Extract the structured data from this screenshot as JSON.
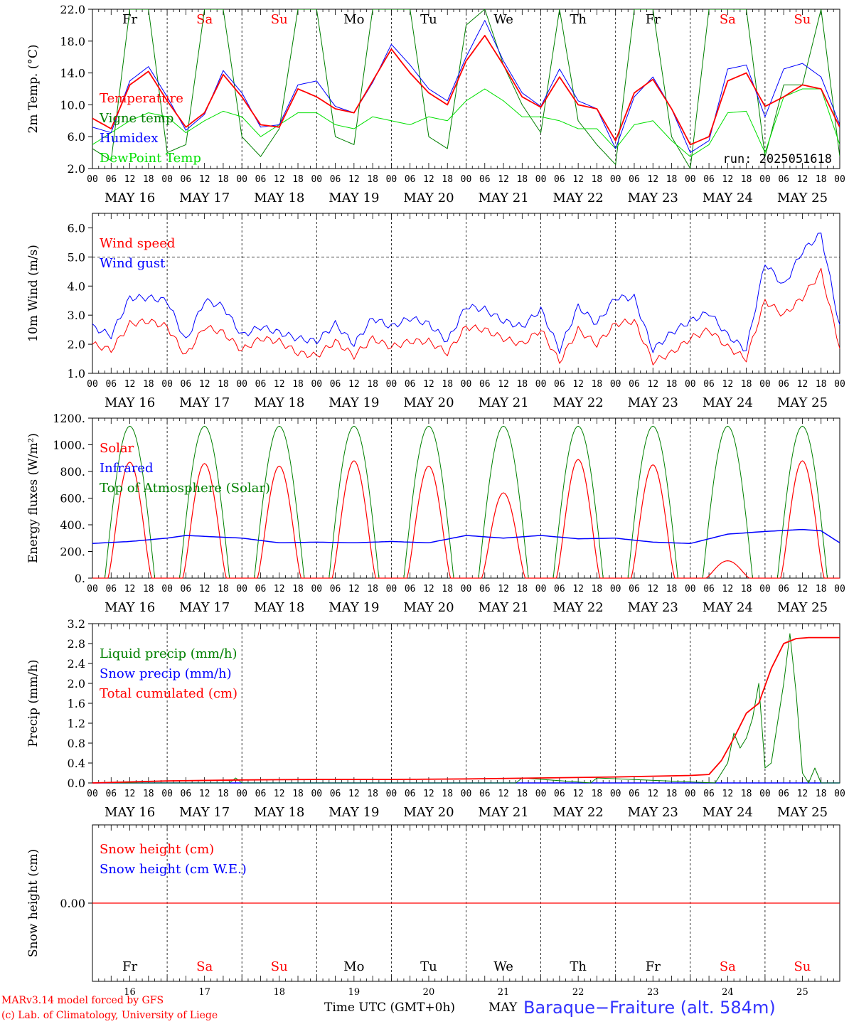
{
  "colors": {
    "red": "#ff0000",
    "green": "#008000",
    "blue": "#0000ff",
    "lightgreen": "#00e000",
    "black": "#000000",
    "grid": "#000000"
  },
  "footer": {
    "credit_line1": "MARv3.14 model forced by GFS",
    "credit_line2": "(c) Lab. of Climatology, University of Liege",
    "time_label": "Time UTC (GMT+0h)",
    "month_label": "MAY",
    "station": "Baraque−Fraiture (alt. 584m)"
  },
  "days": {
    "dates": [
      "MAY 16",
      "MAY 17",
      "MAY 18",
      "MAY 19",
      "MAY 20",
      "MAY 21",
      "MAY 22",
      "MAY 23",
      "MAY 24",
      "MAY 25"
    ],
    "weekdays": [
      "Fr",
      "Sa",
      "Su",
      "Mo",
      "Tu",
      "We",
      "Th",
      "Fr",
      "Sa",
      "Su"
    ],
    "weekday_colors": [
      "#000000",
      "#ff0000",
      "#ff0000",
      "#000000",
      "#000000",
      "#000000",
      "#000000",
      "#000000",
      "#ff0000",
      "#ff0000"
    ],
    "day_numbers": [
      "16",
      "17",
      "18",
      "19",
      "20",
      "21",
      "22",
      "23",
      "24",
      "25"
    ],
    "hour_ticks": [
      "00",
      "06",
      "12",
      "18"
    ],
    "end_tick": "00"
  },
  "chart_data": [
    {
      "type": "line",
      "ylabel": "2m Temp. (°C)",
      "ylim": [
        2,
        22
      ],
      "yticks": [
        "2.0",
        "6.0",
        "10.0",
        "14.0",
        "18.0",
        "22.0"
      ],
      "run_label": "run: 2025051618",
      "legend": [
        {
          "name": "Temperature",
          "color": "#ff0000"
        },
        {
          "name": "Vigne temp",
          "color": "#008000"
        },
        {
          "name": "Humidex",
          "color": "#0000ff"
        },
        {
          "name": "DewPoint Temp",
          "color": "#00e000"
        }
      ],
      "x_hours": [
        0,
        6,
        12,
        18,
        24,
        30,
        36,
        42,
        48,
        54,
        60,
        66,
        72,
        78,
        84,
        90,
        96,
        102,
        108,
        114,
        120,
        126,
        132,
        138,
        144,
        150,
        156,
        162,
        168,
        174,
        180,
        186,
        192,
        198,
        204,
        210,
        216,
        222,
        228,
        234,
        240
      ],
      "series": [
        {
          "name": "Temperature",
          "color": "#ff0000",
          "values": [
            8.3,
            7.0,
            12.5,
            14.2,
            10.5,
            7.2,
            9.0,
            13.8,
            11.0,
            7.5,
            7.2,
            12.0,
            11.0,
            9.5,
            9.0,
            13.0,
            17.0,
            14.0,
            11.5,
            10.0,
            15.5,
            18.7,
            15.0,
            11.0,
            9.7,
            13.5,
            10.0,
            9.5,
            5.5,
            11.5,
            13.2,
            9.5,
            5.0,
            6.0,
            13.0,
            14.0,
            9.8,
            11.0,
            12.5,
            12.0,
            7.2
          ]
        },
        {
          "name": "Vigne temp",
          "color": "#008000",
          "values": [
            4.5,
            3.0,
            22.0,
            22.0,
            4.0,
            5.0,
            22.0,
            22.0,
            6.0,
            3.5,
            7.0,
            22.0,
            22.0,
            6.0,
            5.0,
            22.0,
            22.0,
            22.0,
            6.0,
            4.5,
            20.0,
            22.0,
            15.0,
            10.0,
            6.5,
            22.0,
            8.0,
            5.0,
            2.5,
            22.0,
            22.0,
            6.0,
            2.0,
            22.0,
            22.0,
            22.0,
            3.5,
            12.5,
            12.5,
            22.0,
            3.5
          ]
        },
        {
          "name": "Humidex",
          "color": "#0000ff",
          "values": [
            7.2,
            6.5,
            13.0,
            14.8,
            11.0,
            6.8,
            8.8,
            14.3,
            11.5,
            7.2,
            7.5,
            12.5,
            13.0,
            9.8,
            9.0,
            12.8,
            17.6,
            15.0,
            12.0,
            10.5,
            16.0,
            20.6,
            15.5,
            11.5,
            9.8,
            14.5,
            10.5,
            9.5,
            4.5,
            11.0,
            13.5,
            9.5,
            4.0,
            5.5,
            14.5,
            15.0,
            8.5,
            14.5,
            15.2,
            13.5,
            7.5
          ]
        },
        {
          "name": "DewPoint Temp",
          "color": "#00e000",
          "values": [
            5.0,
            6.5,
            8.0,
            9.0,
            8.5,
            6.5,
            8.0,
            9.2,
            8.5,
            6.0,
            7.5,
            9.0,
            9.0,
            7.5,
            7.0,
            8.5,
            8.0,
            7.5,
            8.5,
            8.0,
            10.5,
            12.0,
            10.5,
            8.5,
            8.5,
            8.0,
            7.0,
            7.0,
            4.5,
            7.5,
            8.0,
            5.5,
            3.5,
            5.0,
            9.0,
            9.2,
            4.0,
            11.0,
            12.0,
            12.0,
            5.0
          ]
        }
      ]
    },
    {
      "type": "line",
      "ylabel": "10m Wind (m/s)",
      "ylim": [
        1,
        6.5
      ],
      "yticks": [
        "1.0",
        "2.0",
        "3.0",
        "4.0",
        "5.0",
        "6.0"
      ],
      "dashed_y": 5.0,
      "legend": [
        {
          "name": "Wind speed",
          "color": "#ff0000"
        },
        {
          "name": "Wind gust",
          "color": "#0000ff"
        }
      ],
      "x_hours": [
        0,
        6,
        12,
        18,
        24,
        30,
        36,
        42,
        48,
        54,
        60,
        66,
        72,
        78,
        84,
        90,
        96,
        102,
        108,
        114,
        120,
        126,
        132,
        138,
        144,
        150,
        156,
        162,
        168,
        174,
        180,
        186,
        192,
        198,
        204,
        210,
        216,
        222,
        228,
        234,
        240
      ],
      "series": [
        {
          "name": "Wind speed",
          "color": "#ff0000",
          "values": [
            2.0,
            1.8,
            2.7,
            2.8,
            2.6,
            1.6,
            2.6,
            2.4,
            1.8,
            2.2,
            2.1,
            1.7,
            1.6,
            2.1,
            1.6,
            2.2,
            1.9,
            2.1,
            2.1,
            1.7,
            2.6,
            2.5,
            2.2,
            2.0,
            2.5,
            1.4,
            2.5,
            2.0,
            2.7,
            2.8,
            1.4,
            1.7,
            2.2,
            2.5,
            1.9,
            1.5,
            3.5,
            3.0,
            3.6,
            4.5,
            1.9
          ]
        },
        {
          "name": "Wind gust",
          "color": "#0000ff",
          "values": [
            2.6,
            2.3,
            3.6,
            3.6,
            3.5,
            2.1,
            3.5,
            3.3,
            2.3,
            2.6,
            2.4,
            2.2,
            2.1,
            2.7,
            2.0,
            2.9,
            2.6,
            2.9,
            2.7,
            2.1,
            3.3,
            3.2,
            2.8,
            2.6,
            3.2,
            1.8,
            3.3,
            2.7,
            3.6,
            3.6,
            1.8,
            2.4,
            2.8,
            3.1,
            2.3,
            1.8,
            4.8,
            4.0,
            5.2,
            5.8,
            2.6
          ]
        }
      ]
    },
    {
      "type": "line",
      "ylabel": "Energy fluxes (W/m²)",
      "ylim": [
        0,
        1200
      ],
      "yticks": [
        "0.",
        "200.",
        "400.",
        "600.",
        "800.",
        "1000.",
        "1200."
      ],
      "legend": [
        {
          "name": "Solar",
          "color": "#ff0000"
        },
        {
          "name": "Infrared",
          "color": "#0000ff"
        },
        {
          "name": "Top of Atmosphere (Solar)",
          "color": "#008000"
        }
      ],
      "toa_peak": 1140,
      "solar_peaks": [
        870,
        860,
        840,
        880,
        840,
        640,
        890,
        850,
        130,
        880
      ],
      "infrared": {
        "x_hours": [
          0,
          12,
          24,
          30,
          48,
          60,
          72,
          84,
          96,
          108,
          120,
          132,
          144,
          156,
          168,
          180,
          192,
          204,
          216,
          228,
          234,
          240
        ],
        "values": [
          260,
          275,
          300,
          320,
          300,
          265,
          270,
          265,
          275,
          265,
          320,
          300,
          320,
          295,
          300,
          270,
          260,
          330,
          350,
          365,
          355,
          265
        ]
      }
    },
    {
      "type": "line",
      "ylabel": "Precip (mm/h)",
      "ylim": [
        0,
        3.2
      ],
      "yticks": [
        "0.0",
        "0.4",
        "0.8",
        "1.2",
        "1.6",
        "2.0",
        "2.4",
        "2.8",
        "3.2"
      ],
      "legend": [
        {
          "name": "Liquid precip (mm/h)",
          "color": "#008000"
        },
        {
          "name": "Snow precip (mm/h)",
          "color": "#0000ff"
        },
        {
          "name": "Total cumulated (cm)",
          "color": "#ff0000"
        }
      ],
      "series": [
        {
          "name": "Liquid precip (mm/h)",
          "color": "#008000",
          "x_hours": [
            0,
            44,
            46,
            48,
            120,
            136,
            138,
            160,
            162,
            200,
            204,
            206,
            208,
            210,
            212,
            214,
            216,
            218,
            220,
            222,
            224,
            226,
            228,
            230,
            232,
            234,
            236,
            238,
            240
          ],
          "values": [
            0,
            0,
            0.1,
            0,
            0,
            0,
            0.1,
            0,
            0.1,
            0,
            0.4,
            1.0,
            0.7,
            0.9,
            1.3,
            2.0,
            0.3,
            0.4,
            1.2,
            2.0,
            3.0,
            1.8,
            0.2,
            0,
            0.3,
            0,
            0,
            0,
            0
          ]
        },
        {
          "name": "Total cumulated (cm)",
          "color": "#ff0000",
          "x_hours": [
            0,
            24,
            48,
            72,
            96,
            120,
            144,
            168,
            192,
            198,
            202,
            206,
            210,
            214,
            218,
            222,
            226,
            230,
            240
          ],
          "values": [
            0,
            0.04,
            0.06,
            0.07,
            0.07,
            0.08,
            0.1,
            0.12,
            0.15,
            0.17,
            0.45,
            0.9,
            1.4,
            1.6,
            2.3,
            2.8,
            2.9,
            2.92,
            2.92
          ]
        }
      ]
    },
    {
      "type": "line",
      "ylabel": "Snow height (cm)",
      "ylim": [
        -1,
        1
      ],
      "yticks": [
        "0.00"
      ],
      "legend": [
        {
          "name": "Snow height (cm)",
          "color": "#ff0000"
        },
        {
          "name": "Snow height (cm W.E.)",
          "color": "#0000ff"
        }
      ],
      "series": [
        {
          "name": "Snow height (cm)",
          "color": "#ff0000",
          "x_hours": [
            0,
            240
          ],
          "values": [
            0,
            0
          ]
        }
      ]
    }
  ]
}
